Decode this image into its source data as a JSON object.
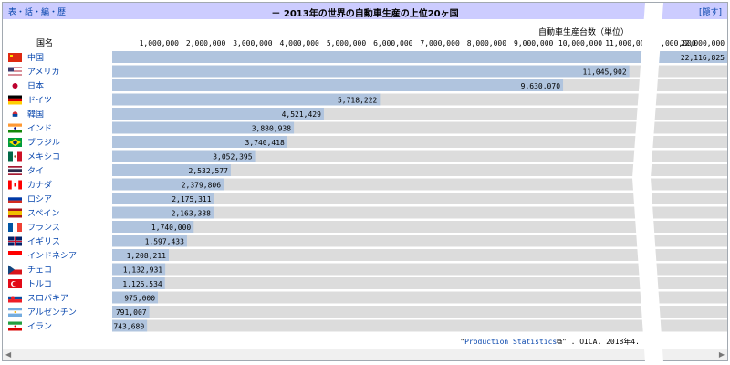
{
  "navbox": {
    "links": "表・話・編・歴",
    "title": "－ 2013年の世界の自動車生産の上位20ヶ国",
    "hide_label": "[隠す]"
  },
  "unit_label": "自動車生産台数（単位）",
  "column_header": "国名",
  "source": {
    "prefix": "\"",
    "link_text": "Production Statistics",
    "suffix": "\" . OICA. 2018年4."
  },
  "chart_data": {
    "type": "bar",
    "orientation": "horizontal",
    "title": "2013年の世界の自動車生産の上位20ヶ国",
    "xlabel": "自動車生産台数（単位）",
    "axis_break": {
      "from": 12000000,
      "to": 22000000
    },
    "tick_labels": [
      "1,000,000",
      "2,000,000",
      "3,000,000",
      "4,000,000",
      "5,000,000",
      "6,000,000",
      "7,000,000",
      "8,000,000",
      "9,000,000",
      "10,000,000",
      "11,000,000",
      "12,000,000",
      "22,000,000"
    ],
    "categories": [
      "中国",
      "アメリカ",
      "日本",
      "ドイツ",
      "韓国",
      "インド",
      "ブラジル",
      "メキシコ",
      "タイ",
      "カナダ",
      "ロシア",
      "スペイン",
      "フランス",
      "イギリス",
      "インドネシア",
      "チェコ",
      "トルコ",
      "スロバキア",
      "アルゼンチン",
      "イラン"
    ],
    "values": [
      22116825,
      11045902,
      9630070,
      5718222,
      4521429,
      3880938,
      3740418,
      3052395,
      2532577,
      2379806,
      2175311,
      2163338,
      1740000,
      1597433,
      1208211,
      1132931,
      1125534,
      975000,
      791007,
      743680
    ],
    "value_labels": [
      "22,116,825",
      "11,045,902",
      "9,630,070",
      "5,718,222",
      "4,521,429",
      "3,880,938",
      "3,740,418",
      "3,052,395",
      "2,532,577",
      "2,379,806",
      "2,175,311",
      "2,163,338",
      "1,740,000",
      "1,597,433",
      "1,208,211",
      "1,132,931",
      "1,125,534",
      "975,000",
      "791,007",
      "743,680"
    ],
    "flag_icons": [
      "flag-china-icon",
      "flag-usa-icon",
      "flag-japan-icon",
      "flag-germany-icon",
      "flag-korea-icon",
      "flag-india-icon",
      "flag-brazil-icon",
      "flag-mexico-icon",
      "flag-thailand-icon",
      "flag-canada-icon",
      "flag-russia-icon",
      "flag-spain-icon",
      "flag-france-icon",
      "flag-uk-icon",
      "flag-indonesia-icon",
      "flag-czech-icon",
      "flag-turkey-icon",
      "flag-slovakia-icon",
      "flag-argentina-icon",
      "flag-iran-icon"
    ]
  },
  "colors": {
    "bar": "#b0c4de",
    "track": "#dcdcdc",
    "header": "#ccccff",
    "link": "#0645ad"
  }
}
